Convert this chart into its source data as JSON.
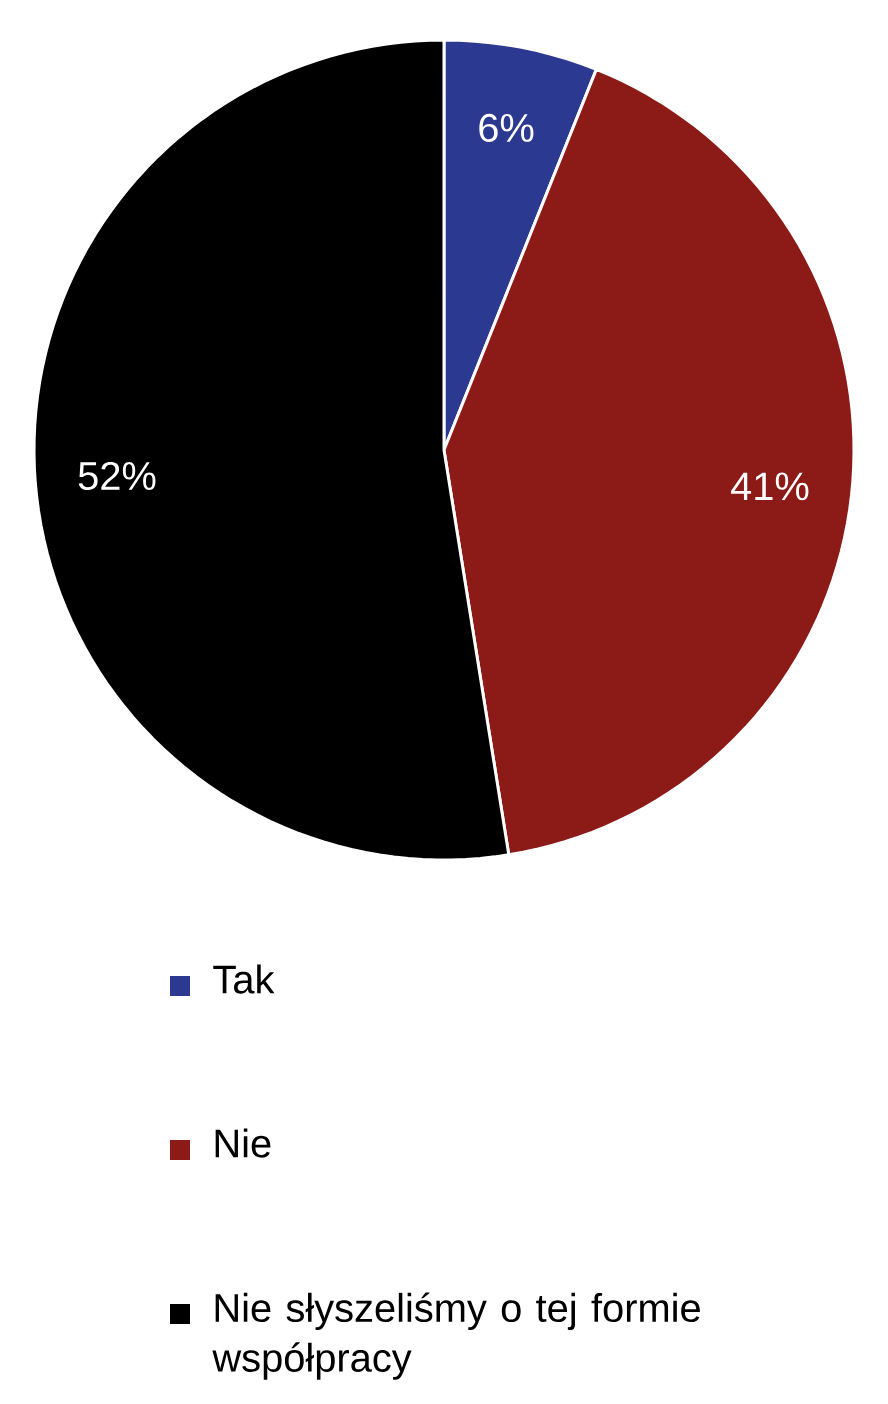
{
  "chart_data": {
    "type": "pie",
    "categories": [
      "Tak",
      "Nie",
      "Nie słyszeliśmy o tej formie współpracy"
    ],
    "values": [
      6,
      41,
      52
    ],
    "colors": [
      "#2b3990",
      "#8c1a16",
      "#000000"
    ],
    "value_labels": [
      "6%",
      "41%",
      "52%"
    ],
    "legend": "bottom"
  }
}
